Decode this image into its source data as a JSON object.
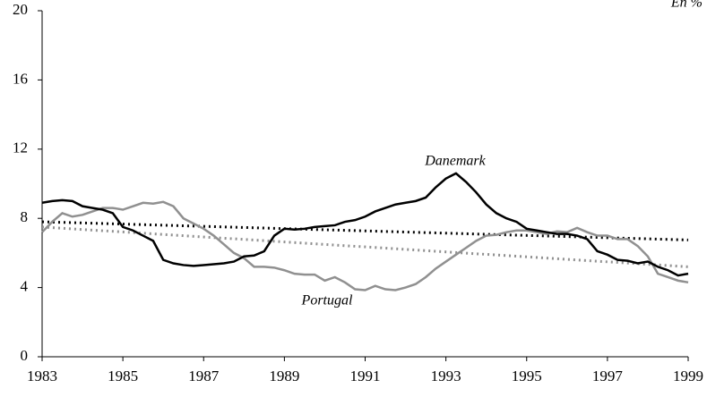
{
  "chart_data": {
    "type": "line",
    "unit_label": "En %",
    "x": [
      1983,
      1983.25,
      1983.5,
      1983.75,
      1984,
      1984.25,
      1984.5,
      1984.75,
      1985,
      1985.25,
      1985.5,
      1985.75,
      1986,
      1986.25,
      1986.5,
      1986.75,
      1987,
      1987.25,
      1987.5,
      1987.75,
      1988,
      1988.25,
      1988.5,
      1988.75,
      1989,
      1989.25,
      1989.5,
      1989.75,
      1990,
      1990.25,
      1990.5,
      1990.75,
      1991,
      1991.25,
      1991.5,
      1991.75,
      1992,
      1992.25,
      1992.5,
      1992.75,
      1993,
      1993.25,
      1993.5,
      1993.75,
      1994,
      1994.25,
      1994.5,
      1994.75,
      1995,
      1995.25,
      1995.5,
      1995.75,
      1996,
      1996.25,
      1996.5,
      1996.75,
      1997,
      1997.25,
      1997.5,
      1997.75,
      1998,
      1998.25,
      1998.5,
      1998.75,
      1999
    ],
    "series": [
      {
        "name": "Danemark",
        "color": "#000000",
        "values": [
          8.9,
          9.0,
          9.05,
          9.0,
          8.7,
          8.6,
          8.5,
          8.3,
          7.5,
          7.3,
          7.0,
          6.7,
          5.6,
          5.4,
          5.3,
          5.25,
          5.3,
          5.35,
          5.4,
          5.5,
          5.8,
          5.85,
          6.1,
          7.0,
          7.4,
          7.35,
          7.4,
          7.5,
          7.55,
          7.6,
          7.8,
          7.9,
          8.1,
          8.4,
          8.6,
          8.8,
          8.9,
          9.0,
          9.2,
          9.8,
          10.3,
          10.6,
          10.1,
          9.5,
          8.8,
          8.3,
          8.0,
          7.8,
          7.4,
          7.3,
          7.2,
          7.1,
          7.1,
          7.0,
          6.8,
          6.1,
          5.9,
          5.6,
          5.55,
          5.4,
          5.5,
          5.2,
          5.0,
          4.7,
          4.8
        ]
      },
      {
        "name": "Portugal",
        "color": "#909090",
        "values": [
          7.2,
          7.8,
          8.3,
          8.1,
          8.2,
          8.4,
          8.6,
          8.6,
          8.5,
          8.7,
          8.9,
          8.85,
          8.95,
          8.7,
          8.0,
          7.7,
          7.4,
          7.0,
          6.5,
          6.0,
          5.7,
          5.2,
          5.2,
          5.15,
          5.0,
          4.8,
          4.75,
          4.75,
          4.4,
          4.6,
          4.3,
          3.9,
          3.85,
          4.1,
          3.9,
          3.85,
          4.0,
          4.2,
          4.6,
          5.1,
          5.5,
          5.9,
          6.3,
          6.7,
          7.0,
          7.05,
          7.2,
          7.3,
          7.3,
          7.2,
          7.1,
          7.25,
          7.2,
          7.45,
          7.2,
          7.0,
          7.0,
          6.8,
          6.8,
          6.4,
          5.8,
          4.8,
          4.6,
          4.4,
          4.3
        ]
      }
    ],
    "trends": [
      {
        "color": "#000000",
        "x": [
          1983,
          1999
        ],
        "values": [
          7.8,
          6.75
        ]
      },
      {
        "color": "#909090",
        "x": [
          1983,
          1999
        ],
        "values": [
          7.5,
          5.2
        ]
      }
    ],
    "xlim": [
      1983,
      1999
    ],
    "xticks": [
      1983,
      1985,
      1987,
      1989,
      1991,
      1993,
      1995,
      1997,
      1999
    ],
    "ylim": [
      0,
      20
    ],
    "yticks": [
      0,
      4,
      8,
      12,
      16,
      20
    ]
  }
}
